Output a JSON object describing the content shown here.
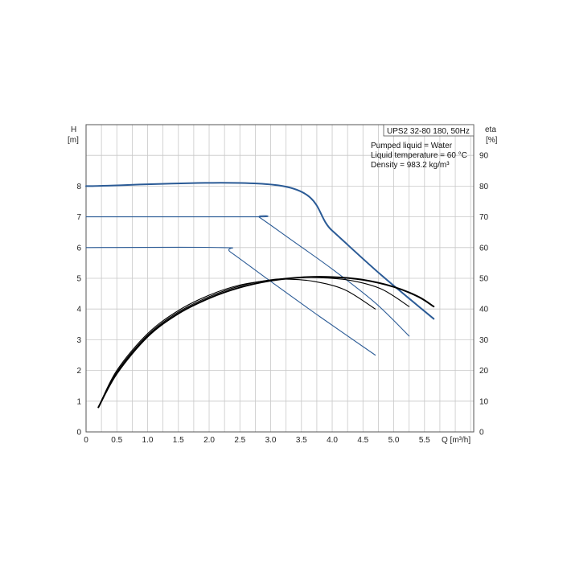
{
  "chart_data": {
    "type": "line",
    "title": "UPS2 32-80 180, 50Hz",
    "annotations": [
      "Pumped liquid = Water",
      "Liquid temperature = 60 °C",
      "Density = 983.2 kg/m³"
    ],
    "left_axis_symbol": "H",
    "left_axis_unit": "[m]",
    "right_axis_symbol": "eta",
    "right_axis_unit": "[%]",
    "xlabel": "Q [m³/h]",
    "xlim": [
      0,
      6.3
    ],
    "ylim": [
      0,
      10
    ],
    "y2lim": [
      0,
      100
    ],
    "x_ticks": [
      "0",
      "0.5",
      "1.0",
      "1.5",
      "2.0",
      "2.5",
      "3.0",
      "3.5",
      "4.0",
      "4.5",
      "5.0",
      "5.5"
    ],
    "y_ticks": [
      "0",
      "1",
      "2",
      "3",
      "4",
      "5",
      "6",
      "7",
      "8"
    ],
    "y2_ticks": [
      "0",
      "10",
      "20",
      "30",
      "40",
      "50",
      "60",
      "70",
      "80",
      "90"
    ],
    "grid": true,
    "colors": {
      "head": "#2b5b96",
      "efficiency": "#000000",
      "grid": "#c8c8c8",
      "frame": "#555555"
    },
    "series": [
      {
        "kind": "head",
        "axis": "left",
        "weight": 2,
        "x": [
          0,
          3.2,
          4.0,
          4.8,
          5.65
        ],
        "y": [
          8.0,
          8.0,
          6.55,
          5.1,
          3.68
        ]
      },
      {
        "kind": "head",
        "axis": "left",
        "weight": 1,
        "x": [
          0,
          2.75,
          2.82,
          3.3,
          4.0,
          4.7,
          5.25
        ],
        "y": [
          7.0,
          7.0,
          6.98,
          6.3,
          5.3,
          4.2,
          3.12
        ]
      },
      {
        "kind": "head",
        "axis": "left",
        "weight": 1,
        "x": [
          0,
          2.2,
          2.35,
          3.0,
          3.8,
          4.7
        ],
        "y": [
          6.0,
          6.0,
          5.85,
          4.9,
          3.75,
          2.5
        ]
      },
      {
        "kind": "efficiency",
        "axis": "right",
        "weight": 2,
        "x": [
          0.2,
          0.5,
          1.0,
          1.5,
          2.0,
          2.5,
          3.0,
          3.5,
          4.0,
          4.5,
          5.0,
          5.4,
          5.65
        ],
        "y": [
          8,
          19,
          31,
          38.5,
          43.5,
          47,
          49.2,
          50.3,
          50.4,
          49.5,
          47.2,
          44,
          40.8
        ]
      },
      {
        "kind": "efficiency",
        "axis": "right",
        "weight": 1,
        "x": [
          0.2,
          0.5,
          1.0,
          1.5,
          2.0,
          2.5,
          3.0,
          3.5,
          3.8,
          4.3,
          4.8,
          5.25
        ],
        "y": [
          8,
          19.5,
          31.5,
          39,
          44,
          47.5,
          49.5,
          50.2,
          50.2,
          49.3,
          46.5,
          40.8
        ]
      },
      {
        "kind": "efficiency",
        "axis": "right",
        "weight": 1,
        "x": [
          0.2,
          0.5,
          1.0,
          1.5,
          2.0,
          2.5,
          3.0,
          3.3,
          3.7,
          4.2,
          4.7
        ],
        "y": [
          8,
          20,
          32,
          39.5,
          44.5,
          47.8,
          49.4,
          49.7,
          49,
          46.3,
          40
        ]
      }
    ]
  }
}
